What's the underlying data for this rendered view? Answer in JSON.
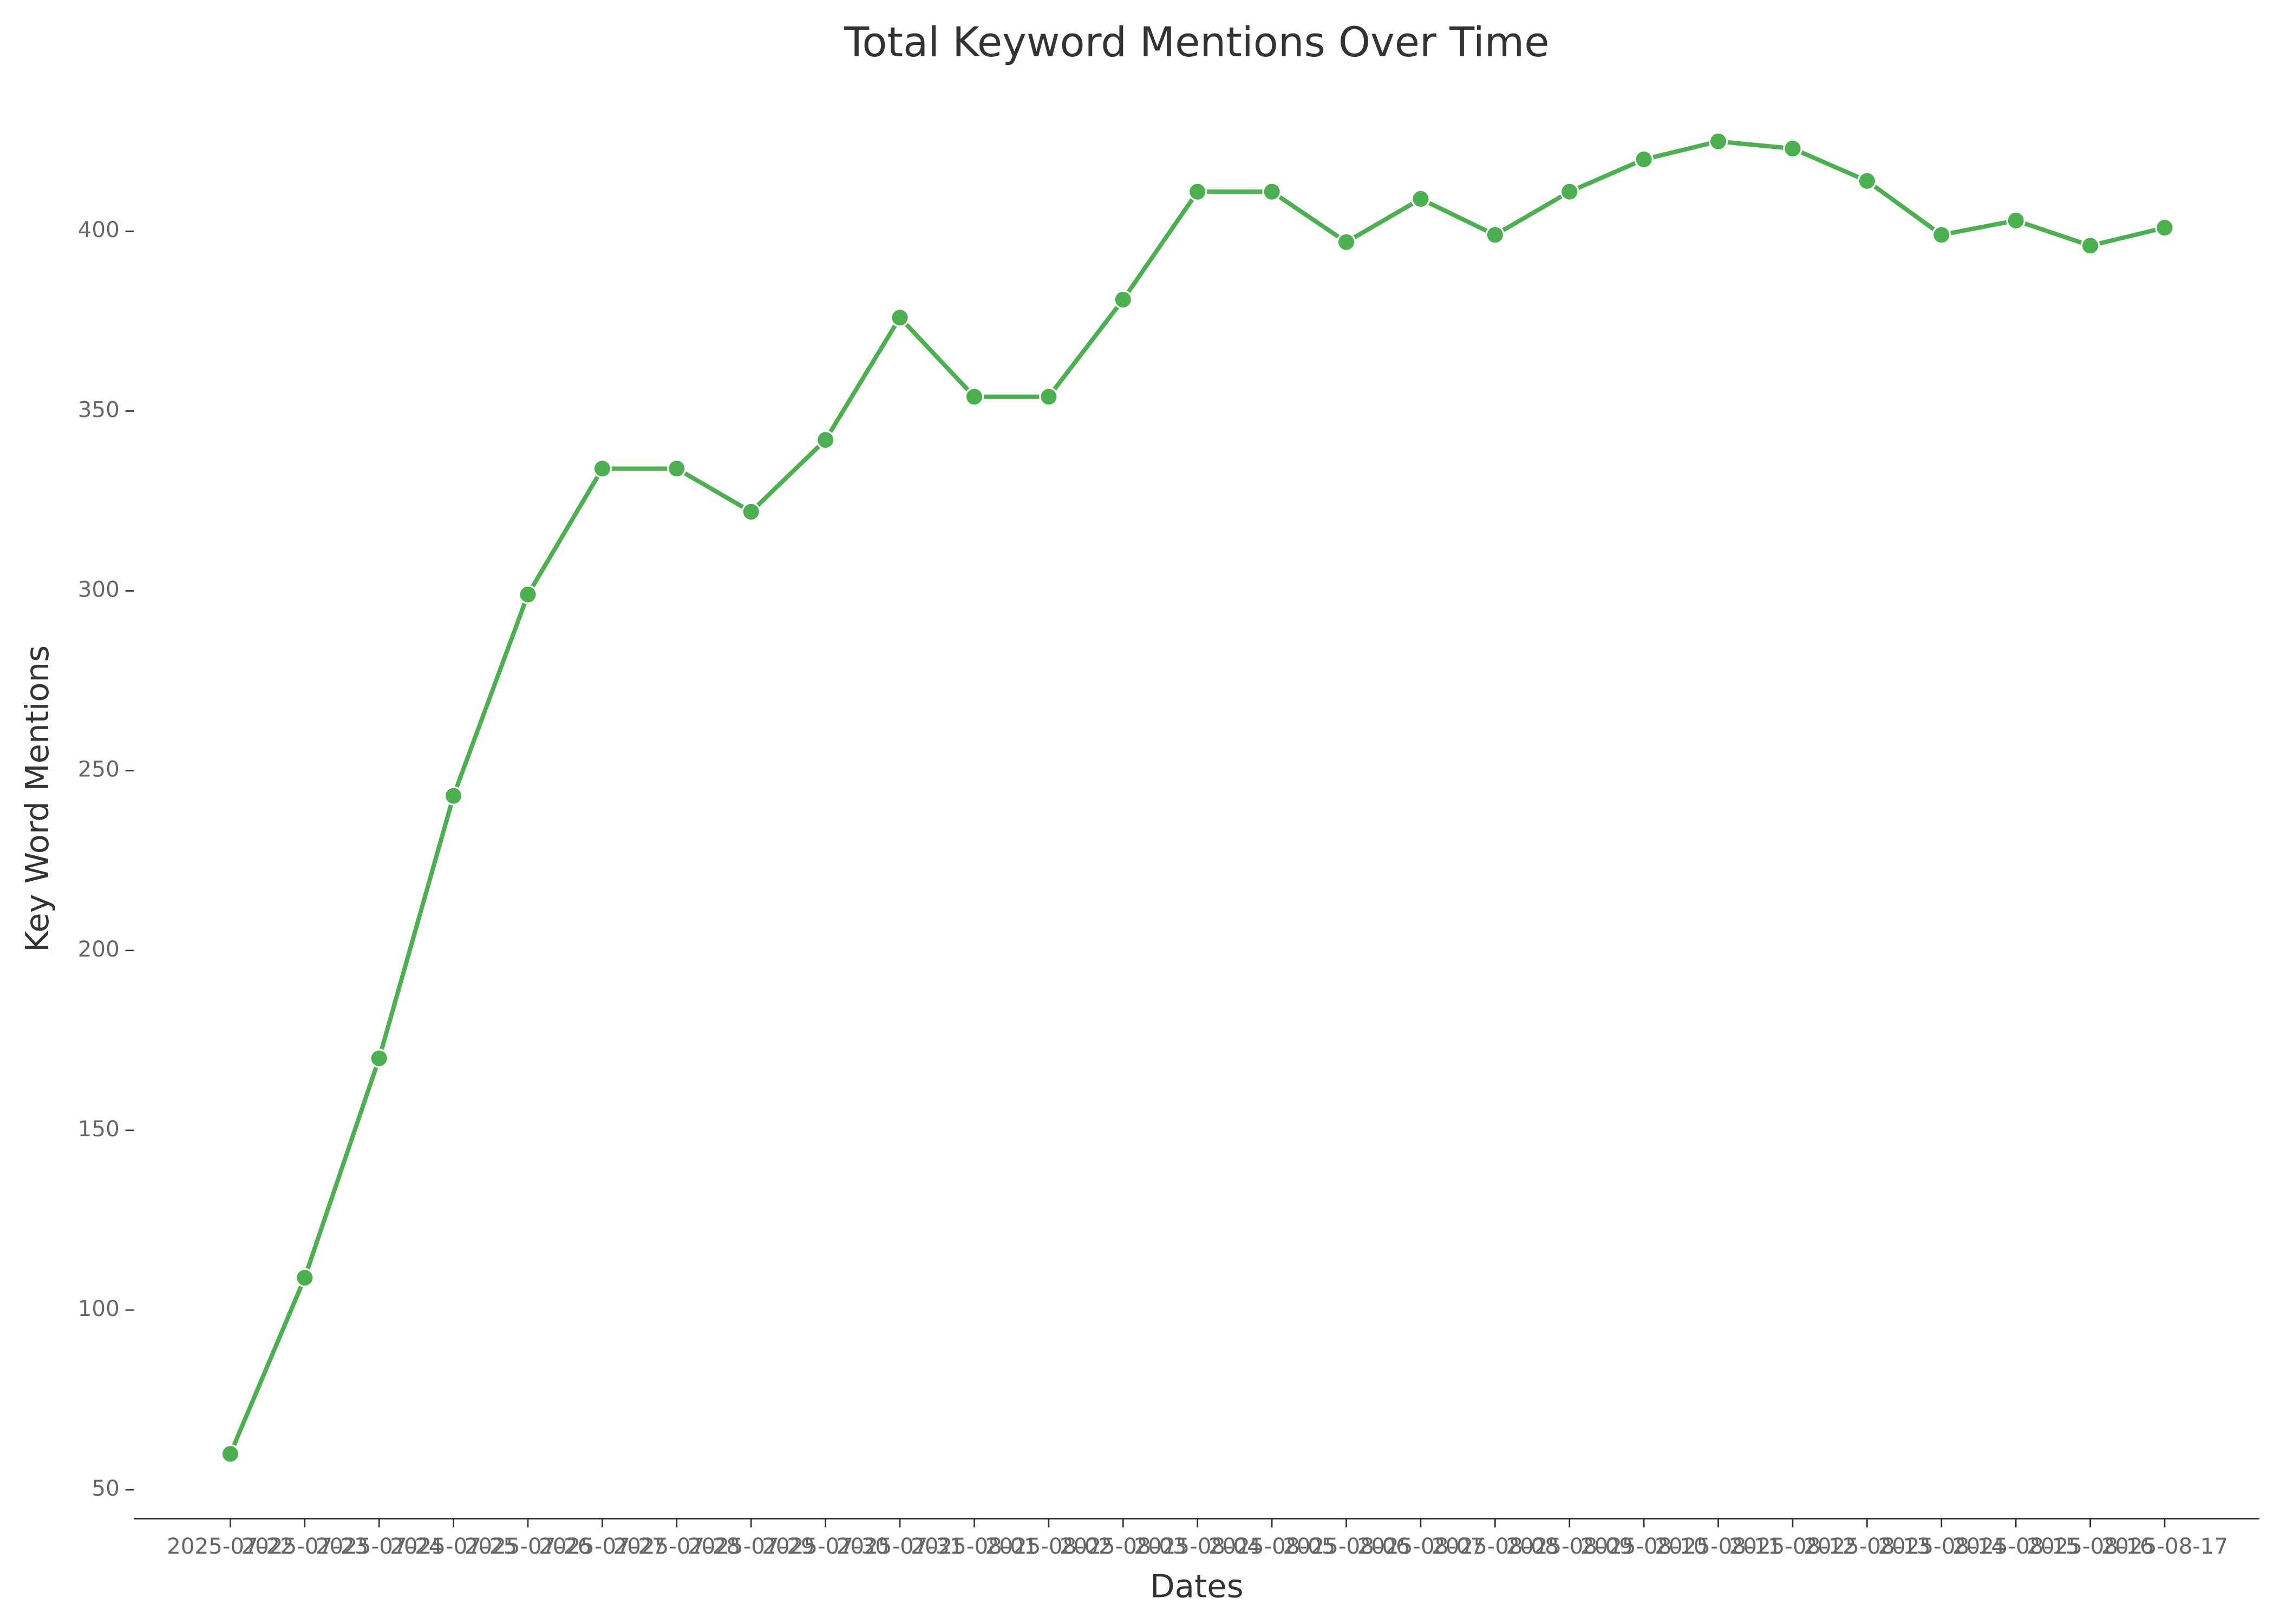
{
  "chart_data": {
    "type": "line",
    "title": "Total Keyword Mentions Over Time",
    "x_label": "Dates",
    "y_label": "Key Word Mentions",
    "categories": [
      "2025-07-22",
      "2025-07-23",
      "2025-07-24",
      "2025-07-25",
      "2025-07-26",
      "2025-07-27",
      "2025-07-28",
      "2025-07-29",
      "2025-07-30",
      "2025-07-31",
      "2025-08-01",
      "2025-08-02",
      "2025-08-03",
      "2025-08-04",
      "2025-08-05",
      "2025-08-06",
      "2025-08-07",
      "2025-08-08",
      "2025-08-09",
      "2025-08-10",
      "2025-08-11",
      "2025-08-12",
      "2025-08-13",
      "2025-08-14",
      "2025-08-15",
      "2025-08-16",
      "2025-08-17"
    ],
    "values": [
      60,
      109,
      170,
      243,
      299,
      334,
      334,
      322,
      342,
      376,
      354,
      354,
      381,
      411,
      411,
      397,
      409,
      399,
      411,
      420,
      425,
      423,
      414,
      399,
      403,
      396,
      401
    ],
    "color": "#4caf50",
    "ylim": [
      42,
      440
    ],
    "yticks": [
      50,
      100,
      150,
      200,
      250,
      300,
      350,
      400
    ]
  }
}
